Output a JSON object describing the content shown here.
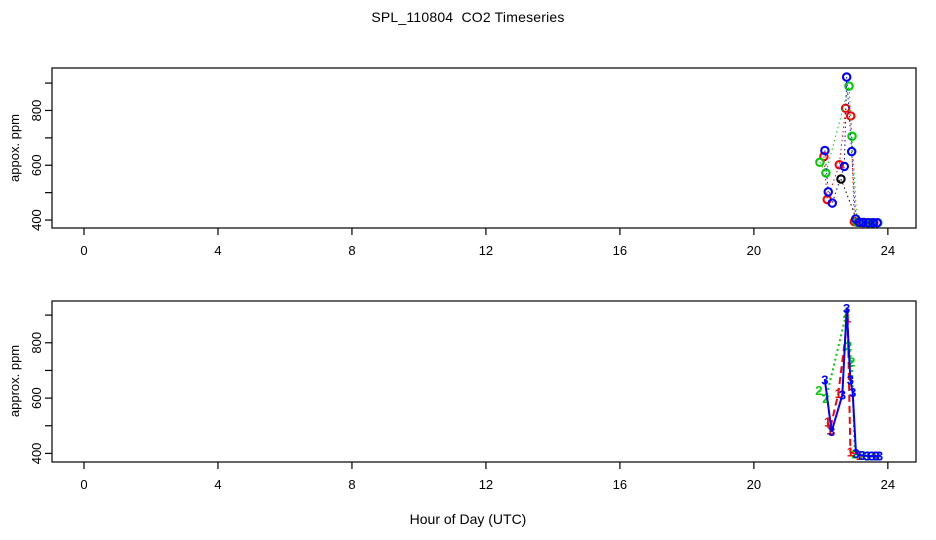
{
  "title": "SPL_110804  CO2 Timeseries",
  "xlabel": "Hour of Day (UTC)",
  "chart_data": [
    {
      "type": "scatter",
      "panel": "top",
      "ylabel": "appox. ppm",
      "marker": "circle",
      "line_style": "fine-dotted",
      "x_ticks": [
        0,
        4,
        8,
        12,
        16,
        20,
        24
      ],
      "y_ticks": [
        400,
        500,
        600,
        700,
        800,
        900
      ],
      "y_labeled_ticks": [
        400,
        600,
        800
      ],
      "xlim": [
        -0.955,
        24.84
      ],
      "ylim": [
        371,
        955
      ],
      "grid": false,
      "legend": "none",
      "series": [
        {
          "name": "sensor-black",
          "color": "#000000",
          "points": [
            [
              22.6,
              550
            ],
            [
              23.1,
              392
            ],
            [
              23.3,
              391
            ],
            [
              23.5,
              390
            ]
          ]
        },
        {
          "name": "sensor-red",
          "color": "#FF0000",
          "points": [
            [
              22.09,
              632
            ],
            [
              22.19,
              475
            ],
            [
              22.55,
              602
            ],
            [
              22.74,
              808
            ],
            [
              22.89,
              780
            ],
            [
              23.0,
              394
            ],
            [
              23.18,
              391
            ],
            [
              23.38,
              390
            ],
            [
              23.58,
              390
            ]
          ]
        },
        {
          "name": "sensor-green",
          "color": "#00CD00",
          "points": [
            [
              21.97,
              611
            ],
            [
              22.15,
              572
            ],
            [
              22.84,
              889
            ],
            [
              22.93,
              706
            ],
            [
              23.08,
              392
            ],
            [
              23.28,
              390
            ],
            [
              23.48,
              390
            ],
            [
              23.7,
              390
            ]
          ]
        },
        {
          "name": "sensor-blue",
          "color": "#0000FF",
          "points": [
            [
              22.12,
              654
            ],
            [
              22.22,
              503
            ],
            [
              22.34,
              462
            ],
            [
              22.7,
              596
            ],
            [
              22.77,
              922
            ],
            [
              22.92,
              650
            ],
            [
              23.04,
              404
            ],
            [
              23.14,
              392
            ],
            [
              23.26,
              391
            ],
            [
              23.42,
              390
            ],
            [
              23.56,
              390
            ],
            [
              23.68,
              390
            ]
          ]
        }
      ]
    },
    {
      "type": "line",
      "panel": "bottom",
      "ylabel": "approx. ppm",
      "marker": "text",
      "x_ticks": [
        0,
        4,
        8,
        12,
        16,
        20,
        24
      ],
      "y_ticks": [
        400,
        500,
        600,
        700,
        800,
        900
      ],
      "y_labeled_ticks": [
        400,
        600,
        800
      ],
      "xlim": [
        -0.955,
        24.84
      ],
      "ylim": [
        369,
        951
      ],
      "grid": false,
      "legend": "none",
      "series": [
        {
          "name": "series-1",
          "pch": "1",
          "color": "#FF0000",
          "line": "dashed",
          "points": [
            [
              22.2,
              513
            ],
            [
              22.27,
              485
            ],
            [
              22.52,
              617
            ],
            [
              22.8,
              889
            ],
            [
              22.88,
              405
            ],
            [
              23.15,
              392
            ],
            [
              23.4,
              390
            ],
            [
              23.6,
              390
            ]
          ]
        },
        {
          "name": "series-2",
          "pch": "2",
          "color": "#00CD00",
          "line": "dotted",
          "points": [
            [
              21.94,
              628
            ],
            [
              22.15,
              598
            ],
            [
              22.76,
              905
            ],
            [
              22.83,
              788
            ],
            [
              22.92,
              731
            ],
            [
              23.02,
              398
            ],
            [
              23.25,
              392
            ],
            [
              23.48,
              391
            ],
            [
              23.68,
              390
            ]
          ]
        },
        {
          "name": "series-3",
          "pch": "3",
          "color": "#0000FF",
          "line": "solid",
          "points": [
            [
              22.12,
              665
            ],
            [
              22.32,
              479
            ],
            [
              22.64,
              611
            ],
            [
              22.77,
              924
            ],
            [
              22.88,
              665
            ],
            [
              22.95,
              620
            ],
            [
              23.05,
              400
            ],
            [
              23.22,
              393
            ],
            [
              23.38,
              391
            ],
            [
              23.52,
              390
            ],
            [
              23.65,
              390
            ],
            [
              23.75,
              390
            ]
          ]
        }
      ]
    }
  ]
}
